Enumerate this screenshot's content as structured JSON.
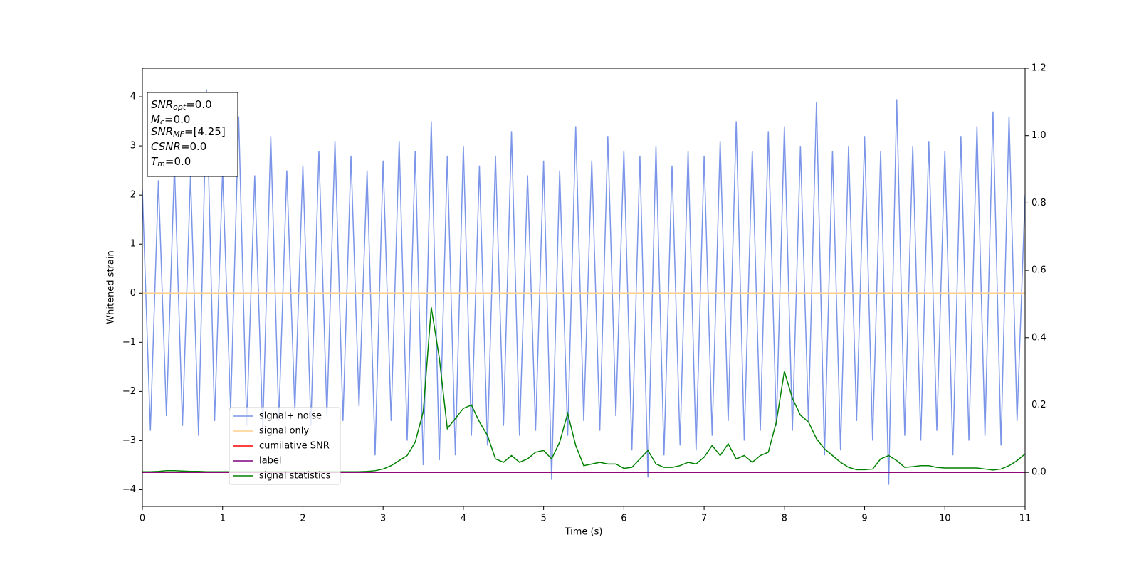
{
  "chart_data": {
    "type": "line",
    "xlabel": "Time (s)",
    "ylabel": "Whitened strain",
    "xlim": [
      0,
      11
    ],
    "xticks": [
      0,
      1,
      2,
      3,
      4,
      5,
      6,
      7,
      8,
      9,
      10,
      11
    ],
    "ylim": [
      -4.34,
      4.58
    ],
    "yticks": [
      {
        "value": -4,
        "label": "−4"
      },
      {
        "value": -3,
        "label": "−3"
      },
      {
        "value": -2,
        "label": "−2"
      },
      {
        "value": -1,
        "label": "−1"
      },
      0,
      1,
      2,
      3,
      4
    ],
    "y2lim": [
      -0.101,
      1.2
    ],
    "y2ticks": [
      {
        "value": 0,
        "label": "0.0"
      },
      {
        "value": 0.2,
        "label": "0.2"
      },
      {
        "value": 0.4,
        "label": "0.4"
      },
      {
        "value": 0.6,
        "label": "0.6"
      },
      {
        "value": 0.8,
        "label": "0.8"
      },
      {
        "value": 1,
        "label": "1.0"
      },
      {
        "value": 1.2,
        "label": "1.2"
      }
    ],
    "annotation_lines": [
      {
        "main": "SNR",
        "sub": "opt",
        "rest": "=0.0"
      },
      {
        "main": "M",
        "sub": "c",
        "rest": "=0.0"
      },
      {
        "main": "SNR",
        "sub": "MF",
        "rest": "=[4.25]"
      },
      {
        "main": "CSNR",
        "rest": "=0.0"
      },
      {
        "main": "T",
        "sub": "m",
        "rest": "=0.0"
      }
    ],
    "series": [
      {
        "name": "signal+ noise",
        "color": "#7b96e8",
        "axis": "y",
        "x": [
          0,
          0.1,
          0.2,
          0.3,
          0.4,
          0.5,
          0.6,
          0.7,
          0.8,
          0.9,
          1,
          1.1,
          1.2,
          1.3,
          1.4,
          1.5,
          1.6,
          1.7,
          1.8,
          1.9,
          2,
          2.1,
          2.2,
          2.3,
          2.4,
          2.5,
          2.6,
          2.7,
          2.8,
          2.9,
          3,
          3.1,
          3.2,
          3.3,
          3.4,
          3.5,
          3.6,
          3.7,
          3.8,
          3.9,
          4,
          4.1,
          4.2,
          4.3,
          4.4,
          4.5,
          4.6,
          4.7,
          4.8,
          4.9,
          5,
          5.1,
          5.2,
          5.3,
          5.4,
          5.5,
          5.6,
          5.7,
          5.8,
          5.9,
          6,
          6.1,
          6.2,
          6.3,
          6.4,
          6.5,
          6.6,
          6.7,
          6.8,
          6.9,
          7,
          7.1,
          7.2,
          7.3,
          7.4,
          7.5,
          7.6,
          7.7,
          7.8,
          7.9,
          8,
          8.1,
          8.2,
          8.3,
          8.4,
          8.5,
          8.6,
          8.7,
          8.8,
          8.9,
          9,
          9.1,
          9.2,
          9.3,
          9.4,
          9.5,
          9.6,
          9.7,
          9.8,
          9.9,
          10,
          10.1,
          10.2,
          10.3,
          10.4,
          10.5,
          10.6,
          10.7,
          10.8,
          10.9,
          11
        ],
        "values": [
          2.1,
          -2.8,
          2.3,
          -2.5,
          2.6,
          -2.7,
          2.4,
          -2.9,
          4.15,
          -2.6,
          2.5,
          -2.4,
          3.6,
          -2.7,
          2.4,
          -2.8,
          3.2,
          -2.6,
          2.5,
          -2.4,
          2.6,
          -2.7,
          2.9,
          -2.5,
          3.1,
          -2.6,
          2.8,
          -2.3,
          2.5,
          -3.3,
          2.7,
          -2.6,
          3.1,
          -3.0,
          2.9,
          -3.5,
          3.5,
          -3.4,
          2.8,
          -3.3,
          3.0,
          -2.9,
          2.6,
          -3.1,
          2.8,
          -2.7,
          3.3,
          -2.9,
          2.4,
          -2.8,
          2.7,
          -3.8,
          2.5,
          -2.9,
          3.4,
          -2.6,
          2.7,
          -2.8,
          3.2,
          -2.5,
          2.9,
          -3.2,
          2.8,
          -3.75,
          3.0,
          -3.3,
          2.6,
          -3.1,
          2.9,
          -3.2,
          2.8,
          -2.9,
          3.1,
          -2.6,
          3.5,
          -3.0,
          2.9,
          -2.8,
          3.3,
          -2.7,
          3.4,
          -2.8,
          3.0,
          -2.6,
          3.9,
          -3.3,
          2.9,
          -3.2,
          3.0,
          -2.6,
          3.2,
          -3.0,
          2.9,
          -3.9,
          3.95,
          -2.9,
          3.0,
          -3.0,
          3.1,
          -2.8,
          2.9,
          -3.3,
          3.2,
          -3.0,
          3.4,
          -2.9,
          3.7,
          -3.1,
          3.6,
          -2.6,
          2.0
        ]
      },
      {
        "name": "signal only",
        "color": "#ffcf8c",
        "axis": "y",
        "x": [
          0,
          11
        ],
        "values": [
          0,
          0
        ]
      },
      {
        "name": "cumilative SNR",
        "color": "#ff0000",
        "axis": "y2",
        "x": [
          0,
          11
        ],
        "values": [
          0,
          0
        ]
      },
      {
        "name": "label",
        "color": "#800080",
        "axis": "y2",
        "x": [
          0,
          11
        ],
        "values": [
          0,
          0
        ]
      },
      {
        "name": "signal statistics",
        "color": "#008000",
        "axis": "y2",
        "x": [
          0,
          0.1,
          0.2,
          0.3,
          0.4,
          0.5,
          0.6,
          0.7,
          0.8,
          0.9,
          1,
          1.1,
          1.2,
          1.3,
          1.4,
          1.5,
          1.6,
          1.7,
          1.8,
          1.9,
          2,
          2.1,
          2.2,
          2.3,
          2.4,
          2.5,
          2.6,
          2.7,
          2.8,
          2.9,
          3,
          3.1,
          3.2,
          3.3,
          3.4,
          3.5,
          3.6,
          3.7,
          3.8,
          3.9,
          4,
          4.1,
          4.2,
          4.3,
          4.4,
          4.5,
          4.6,
          4.7,
          4.8,
          4.9,
          5,
          5.1,
          5.2,
          5.3,
          5.4,
          5.5,
          5.6,
          5.7,
          5.8,
          5.9,
          6,
          6.1,
          6.2,
          6.3,
          6.4,
          6.5,
          6.6,
          6.7,
          6.8,
          6.9,
          7,
          7.1,
          7.2,
          7.3,
          7.4,
          7.5,
          7.6,
          7.7,
          7.8,
          7.9,
          8,
          8.1,
          8.2,
          8.3,
          8.4,
          8.5,
          8.6,
          8.7,
          8.8,
          8.9,
          9,
          9.1,
          9.2,
          9.3,
          9.4,
          9.5,
          9.6,
          9.7,
          9.8,
          9.9,
          10,
          10.1,
          10.2,
          10.3,
          10.4,
          10.5,
          10.6,
          10.7,
          10.8,
          10.9,
          11
        ],
        "values": [
          0.002,
          0.002,
          0.003,
          0.005,
          0.005,
          0.004,
          0.003,
          0.003,
          0.002,
          0.002,
          0.002,
          0.002,
          0.002,
          0.002,
          0.002,
          0.002,
          0.002,
          0.002,
          0.002,
          0.002,
          0.002,
          0.002,
          0.002,
          0.002,
          0.002,
          0.002,
          0.002,
          0.002,
          0.003,
          0.005,
          0.01,
          0.02,
          0.035,
          0.05,
          0.09,
          0.18,
          0.49,
          0.34,
          0.13,
          0.16,
          0.19,
          0.2,
          0.15,
          0.11,
          0.04,
          0.03,
          0.05,
          0.03,
          0.04,
          0.06,
          0.065,
          0.04,
          0.09,
          0.175,
          0.08,
          0.02,
          0.025,
          0.03,
          0.025,
          0.025,
          0.012,
          0.015,
          0.04,
          0.065,
          0.025,
          0.015,
          0.015,
          0.02,
          0.03,
          0.025,
          0.045,
          0.08,
          0.05,
          0.085,
          0.04,
          0.05,
          0.03,
          0.05,
          0.06,
          0.15,
          0.3,
          0.22,
          0.17,
          0.15,
          0.1,
          0.07,
          0.05,
          0.03,
          0.015,
          0.008,
          0.008,
          0.01,
          0.04,
          0.05,
          0.035,
          0.015,
          0.017,
          0.02,
          0.02,
          0.015,
          0.013,
          0.013,
          0.013,
          0.013,
          0.013,
          0.01,
          0.007,
          0.01,
          0.02,
          0.035,
          0.055
        ]
      }
    ]
  }
}
